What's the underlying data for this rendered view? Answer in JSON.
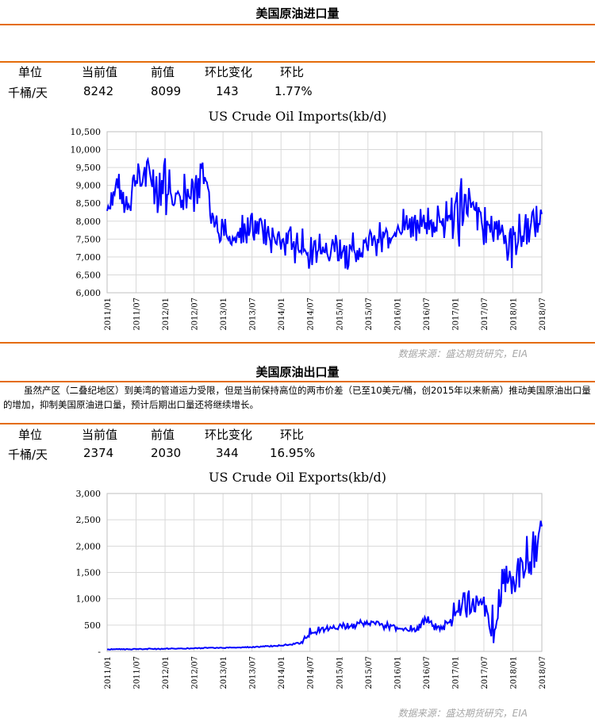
{
  "imports": {
    "title": "美国原油进口量",
    "stats": {
      "headers": [
        "单位",
        "当前值",
        "前值",
        "环比变化",
        "环比"
      ],
      "values": [
        "千桶/天",
        "8242",
        "8099",
        "143",
        "1.77%"
      ]
    },
    "source": "数据来源：盛达期货研究，EIA"
  },
  "exports": {
    "title": "美国原油出口量",
    "note": "虽然产区（二叠纪地区）到美湾的管道运力受限，但是当前保持高位的两市价差（已至10美元/桶，创2015年以来新高）推动美国原油出口量的增加，抑制美国原油进口量，预计后期出口量还将继续增长。",
    "stats": {
      "headers": [
        "单位",
        "当前值",
        "前值",
        "环比变化",
        "环比"
      ],
      "values": [
        "千桶/天",
        "2374",
        "2030",
        "344",
        "16.95%"
      ]
    },
    "source": "数据来源：盛达期货研究，EIA"
  },
  "chart_data": [
    {
      "type": "line",
      "title": "US Crude Oil Imports(kb/d)",
      "xlabel": "",
      "ylabel": "",
      "ylim": [
        6000,
        10500
      ],
      "yticks": [
        "6,000",
        "6,500",
        "7,000",
        "7,500",
        "8,000",
        "8,500",
        "9,000",
        "9,500",
        "10,000",
        "10,500"
      ],
      "xticks": [
        "2011/01",
        "2011/07",
        "2012/01",
        "2012/07",
        "2013/01",
        "2013/07",
        "2014/01",
        "2014/07",
        "2015/01",
        "2015/07",
        "2016/01",
        "2016/07",
        "2017/01",
        "2017/07",
        "2018/01",
        "2018/07"
      ],
      "grid": true,
      "color": "#0000ff",
      "series": [
        {
          "x": [
            "2011/01",
            "2011/03",
            "2011/05",
            "2011/07",
            "2011/09",
            "2011/11",
            "2012/01",
            "2012/03",
            "2012/05",
            "2012/07",
            "2012/09",
            "2012/11",
            "2013/01",
            "2013/03",
            "2013/05",
            "2013/07",
            "2013/09",
            "2013/11",
            "2014/01",
            "2014/03",
            "2014/05",
            "2014/07",
            "2014/09",
            "2014/11",
            "2015/01",
            "2015/03",
            "2015/05",
            "2015/07",
            "2015/09",
            "2015/11",
            "2016/01",
            "2016/03",
            "2016/05",
            "2016/07",
            "2016/09",
            "2016/11",
            "2017/01",
            "2017/03",
            "2017/05",
            "2017/07",
            "2017/09",
            "2017/11",
            "2018/01",
            "2018/03",
            "2018/05",
            "2018/07"
          ],
          "values": [
            8400,
            9000,
            8500,
            9200,
            9500,
            9100,
            8800,
            8700,
            9000,
            8800,
            9100,
            8000,
            7800,
            7500,
            7700,
            7800,
            7800,
            7600,
            7500,
            7300,
            7300,
            7300,
            7300,
            7200,
            7300,
            7200,
            7200,
            7300,
            7500,
            7400,
            7800,
            7900,
            7800,
            7900,
            8000,
            8100,
            8100,
            8400,
            8200,
            8000,
            7800,
            7800,
            7500,
            7700,
            7900,
            8200
          ],
          "low": [
            8200,
            8100,
            8000,
            8500,
            8800,
            8400,
            7600,
            8000,
            8300,
            8200,
            8300,
            7600,
            7100,
            7200,
            7200,
            7300,
            7400,
            7100,
            6900,
            6800,
            6800,
            6500,
            6900,
            6800,
            6800,
            6600,
            6700,
            6900,
            7000,
            7000,
            7400,
            7500,
            7400,
            7400,
            7500,
            7500,
            7000,
            7500,
            7400,
            7300,
            7200,
            7200,
            6500,
            7000,
            7200,
            7400
          ],
          "high": [
            8700,
            9400,
            9100,
            9800,
            9800,
            9700,
            9900,
            9200,
            9500,
            9400,
            9800,
            8700,
            8400,
            8000,
            8200,
            8400,
            8300,
            8200,
            7900,
            7900,
            7800,
            7900,
            7800,
            7700,
            7800,
            7800,
            7700,
            7800,
            8000,
            7900,
            8300,
            8400,
            8300,
            8400,
            8800,
            8900,
            9000,
            9400,
            8900,
            8700,
            8400,
            8500,
            8000,
            8400,
            8600,
            8400
          ]
        }
      ]
    },
    {
      "type": "line",
      "title": "US Crude Oil Exports(kb/d)",
      "xlabel": "",
      "ylabel": "",
      "ylim": [
        0,
        3000
      ],
      "yticks": [
        "-",
        "500",
        "1,000",
        "1,500",
        "2,000",
        "2,500",
        "3,000"
      ],
      "xticks": [
        "2011/01",
        "2011/07",
        "2012/01",
        "2012/07",
        "2013/01",
        "2013/07",
        "2014/01",
        "2014/07",
        "2015/01",
        "2015/07",
        "2016/01",
        "2016/07",
        "2017/01",
        "2017/07",
        "2018/01",
        "2018/07"
      ],
      "grid": true,
      "color": "#0000ff",
      "series": [
        {
          "x": [
            "2011/01",
            "2011/07",
            "2012/01",
            "2012/07",
            "2013/01",
            "2013/07",
            "2014/01",
            "2014/05",
            "2014/07",
            "2014/09",
            "2014/11",
            "2015/01",
            "2015/03",
            "2015/05",
            "2015/07",
            "2015/09",
            "2015/11",
            "2016/01",
            "2016/03",
            "2016/05",
            "2016/07",
            "2016/09",
            "2016/11",
            "2017/01",
            "2017/03",
            "2017/05",
            "2017/07",
            "2017/09",
            "2017/11",
            "2018/01",
            "2018/03",
            "2018/05",
            "2018/07"
          ],
          "values": [
            40,
            45,
            50,
            60,
            70,
            80,
            110,
            150,
            350,
            420,
            460,
            470,
            480,
            530,
            570,
            520,
            480,
            450,
            430,
            400,
            600,
            450,
            500,
            700,
            900,
            800,
            850,
            200,
            1300,
            1500,
            1600,
            1800,
            2374
          ],
          "low": [
            30,
            35,
            40,
            50,
            60,
            70,
            100,
            130,
            250,
            350,
            380,
            400,
            420,
            450,
            450,
            450,
            400,
            380,
            350,
            350,
            500,
            380,
            400,
            500,
            650,
            550,
            600,
            150,
            900,
            1100,
            1200,
            1300,
            1700
          ],
          "high": [
            50,
            55,
            60,
            70,
            80,
            90,
            130,
            180,
            450,
            500,
            520,
            550,
            580,
            600,
            600,
            580,
            550,
            500,
            500,
            500,
            700,
            550,
            650,
            1000,
            1200,
            1150,
            1200,
            900,
            2100,
            2100,
            2000,
            2550,
            2500
          ]
        }
      ]
    }
  ]
}
